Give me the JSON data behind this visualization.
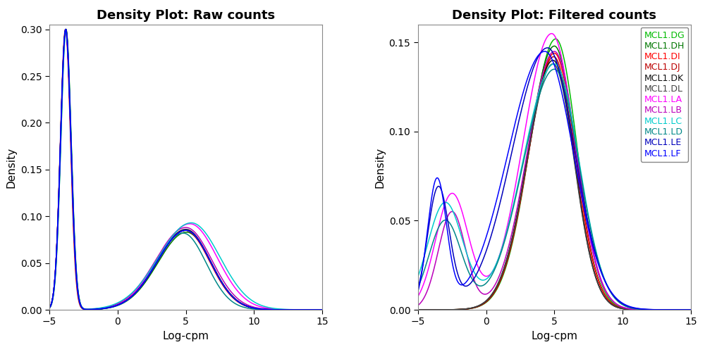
{
  "title_left": "Density Plot: Raw counts",
  "title_right": "Density Plot: Filtered counts",
  "xlabel": "Log-cpm",
  "ylabel": "Density",
  "xlim": [
    -5,
    15
  ],
  "ylim_left": [
    0,
    0.305
  ],
  "ylim_right": [
    0,
    0.16
  ],
  "yticks_left": [
    0.0,
    0.05,
    0.1,
    0.15,
    0.2,
    0.25,
    0.3
  ],
  "yticks_right": [
    0.0,
    0.05,
    0.1,
    0.15
  ],
  "xticks": [
    -5,
    0,
    5,
    10,
    15
  ],
  "samples": [
    "MCL1.DG",
    "MCL1.DH",
    "MCL1.DI",
    "MCL1.DJ",
    "MCL1.DK",
    "MCL1.DL",
    "MCL1.LA",
    "MCL1.LB",
    "MCL1.LC",
    "MCL1.LD",
    "MCL1.LE",
    "MCL1.LF"
  ],
  "colors": {
    "MCL1.DG": "#00BB00",
    "MCL1.DH": "#007700",
    "MCL1.DI": "#FF0000",
    "MCL1.DJ": "#BB0000",
    "MCL1.DK": "#111111",
    "MCL1.DL": "#444444",
    "MCL1.LA": "#FF00FF",
    "MCL1.LB": "#BB00BB",
    "MCL1.LC": "#00CCCC",
    "MCL1.LD": "#008888",
    "MCL1.LE": "#0000BB",
    "MCL1.LF": "#0000FF"
  },
  "background_color": "#ffffff",
  "title_fontsize": 13,
  "label_fontsize": 11,
  "tick_fontsize": 10,
  "legend_fontsize": 9
}
